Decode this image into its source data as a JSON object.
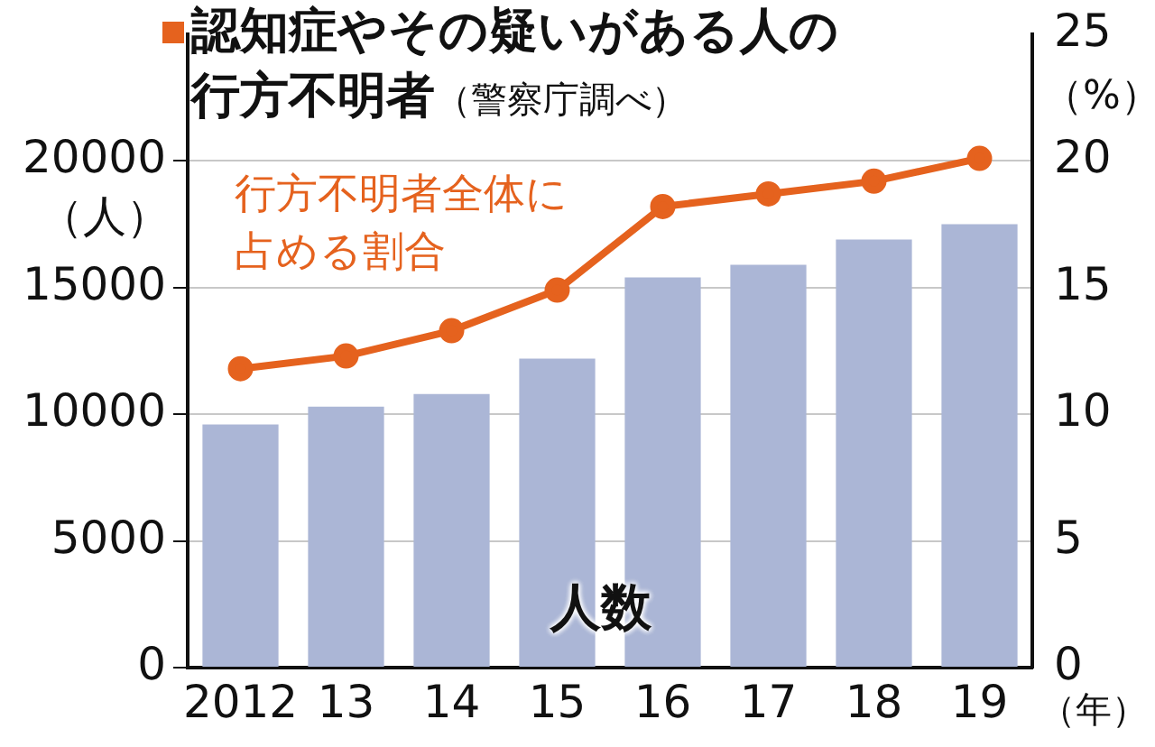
{
  "chart_data": {
    "type": "bar",
    "title": "認知症やその疑いがある人の行方不明者",
    "subtitle": "（警察庁調べ）",
    "ylabel": "（人）",
    "y2label": "（%）",
    "xlabel": "（年）",
    "categories": [
      "2012",
      "13",
      "14",
      "15",
      "16",
      "17",
      "18",
      "19"
    ],
    "series": [
      {
        "color": "#abb6d6",
        "values": [
          9600,
          10300,
          10800,
          12200,
          15400,
          15900,
          16900,
          17500
        ]
      },
      {
        "type": "line",
        "axis": "y2",
        "color": "#e5621e",
        "marker": "circle",
        "values": [
          11.8,
          12.3,
          13.3,
          14.9,
          18.2,
          18.7,
          19.2,
          20.1
        ]
      }
    ],
    "annotations": [
      "行方不明者全体に占める割合",
      "人数"
    ],
    "ylim": [
      0,
      25000
    ],
    "yticks": [
      0,
      5000,
      10000,
      15000,
      20000
    ],
    "y2lim": [
      0,
      25
    ],
    "y2ticks": [
      0,
      5,
      10,
      15,
      20,
      25
    ],
    "grid": "y",
    "legend": false
  }
}
